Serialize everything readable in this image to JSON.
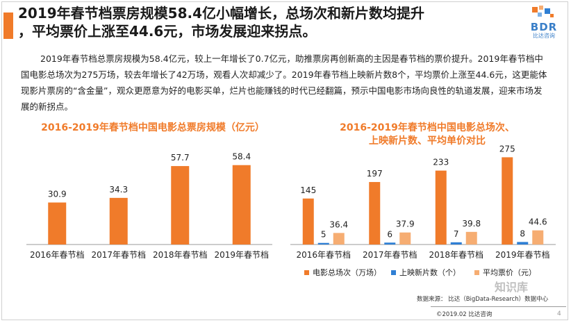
{
  "page": {
    "title_line1": "2019年春节档票房规模58.4亿小幅增长，总场次和新片数均提升",
    "title_line2": "，平均票价上涨至44.6元，市场发展迎来拐点。",
    "logo": "BDR",
    "logo_sub": "比达咨询",
    "body": "2019年春节档总票房规模为58.4亿元，较上一年增长了0.7亿元，助推票房再创新高的主因是春节档的票价提升。2019年春节档中国电影总场次为275万场，较去年增长了42万场，观看人次却减少了。2019年春节档上映新片数8个，平均票价上涨至44.6元，这更能体现影片票房的“含金量”，观众更愿意为好的电影买单，烂片也能赚钱的时代已经翻篇，预示中国电影市场向良性的轨道发展，迎来市场发展的新拐点。",
    "source": "数据来源： 比达（BigData-Research）数据中心",
    "copyright": "©2019.02  比达咨询",
    "page_number": "4",
    "watermark": "知识库"
  },
  "colors": {
    "accent": "#f07b2a",
    "bar_main": "#f07b2a",
    "bar_blue": "#2f7fd4",
    "bar_light": "#f6ad72"
  },
  "chart_data": [
    {
      "type": "bar",
      "title": "2016-2019年春节档中国电影总票房规模（亿元）",
      "categories": [
        "2016年春节档",
        "2017年春节档",
        "2018年春节档",
        "2019年春节档"
      ],
      "values": [
        30.9,
        34.3,
        57.7,
        58.4
      ],
      "value_labels": [
        "30.9",
        "34.3",
        "57.7",
        "58.4"
      ],
      "xlabel": "",
      "ylabel": "",
      "ylim": [
        0,
        70
      ],
      "grid": false
    },
    {
      "type": "bar",
      "title_line1": "2016-2019年春节档中国电影总场次、",
      "title_line2": "上映新片数、平均单价对比",
      "categories": [
        "2016年春节档",
        "2017年春节档",
        "2018年春节档",
        "2019年春节档"
      ],
      "series": [
        {
          "name": "电影总场次（万场）",
          "values": [
            145,
            197,
            233,
            275
          ],
          "labels": [
            "145",
            "197",
            "233",
            "275"
          ],
          "color_key": "bar_main"
        },
        {
          "name": "上映新片数（个）",
          "values": [
            5,
            6,
            7,
            8
          ],
          "labels": [
            "5",
            "6",
            "7",
            "8"
          ],
          "color_key": "bar_blue"
        },
        {
          "name": "平均票价（元）",
          "values": [
            36.4,
            37.9,
            39.8,
            44.6
          ],
          "labels": [
            "36.4",
            "37.9",
            "39.8",
            "44.6"
          ],
          "color_key": "bar_light"
        }
      ],
      "ylim": [
        0,
        300
      ],
      "legend": "bottom",
      "grid": false
    }
  ]
}
